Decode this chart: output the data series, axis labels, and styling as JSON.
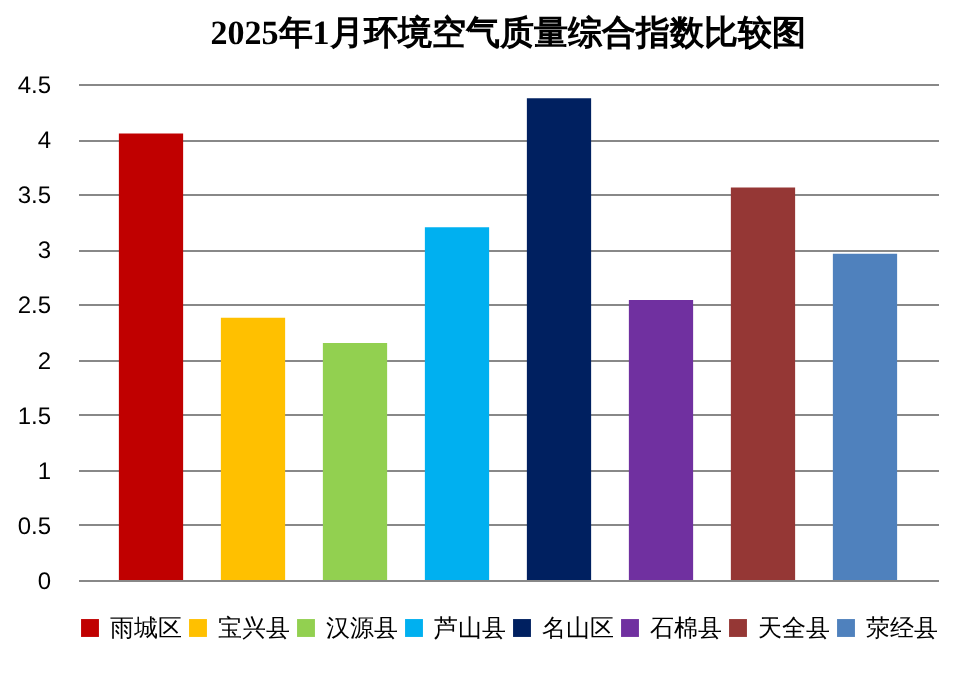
{
  "chart_data": {
    "type": "bar",
    "title": "2025年1月环境空气质量综合指数比较图",
    "categories": [
      null
    ],
    "series": [
      {
        "name": "雨城区",
        "color": "#c00000",
        "values": [
          4.05
        ]
      },
      {
        "name": "宝兴县",
        "color": "#ffc000",
        "values": [
          2.38
        ]
      },
      {
        "name": "汉源县",
        "color": "#92d050",
        "values": [
          2.15
        ]
      },
      {
        "name": "芦山县",
        "color": "#00b0f0",
        "values": [
          3.2
        ]
      },
      {
        "name": "名山区",
        "color": "#002060",
        "values": [
          4.37
        ]
      },
      {
        "name": "石棉县",
        "color": "#7030a0",
        "values": [
          2.54
        ]
      },
      {
        "name": "天全县",
        "color": "#953735",
        "values": [
          3.56
        ]
      },
      {
        "name": "荥经县",
        "color": "#4f81bd",
        "values": [
          2.96
        ]
      }
    ],
    "ylim": [
      0,
      4.5
    ],
    "yticks": [
      0,
      0.5,
      1,
      1.5,
      2,
      2.5,
      3,
      3.5,
      4,
      4.5
    ],
    "grid": "y",
    "legend": "bottom",
    "tick_labels": "y"
  }
}
